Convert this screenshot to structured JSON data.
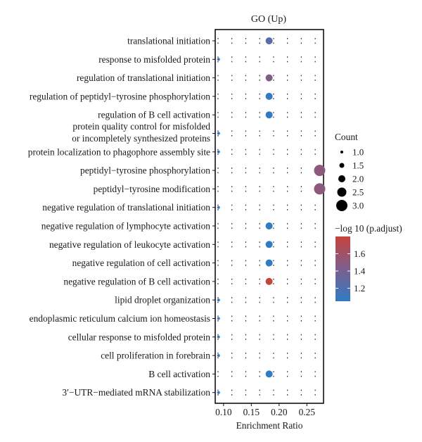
{
  "chart_data": {
    "type": "scatter",
    "title": "GO (Up)",
    "xlabel": "Enrichment Ratio",
    "xlim": [
      0.085,
      0.28
    ],
    "xticks": [
      0.1,
      0.15,
      0.2,
      0.25
    ],
    "xtick_labels": [
      "0.10",
      "0.15",
      "0.20",
      "0.25"
    ],
    "categories": [
      "translational initiation",
      "response to misfolded protein",
      "regulation of translational initiation",
      "regulation of peptidyl−tyrosine phosphorylation",
      "regulation of B cell activation",
      "protein quality control for misfolded\nor incompletely synthesized proteins",
      "protein localization to phagophore assembly site",
      "peptidyl−tyrosine phosphorylation",
      "peptidyl−tyrosine modification",
      "negative regulation of translational initiation",
      "negative regulation of lymphocyte activation",
      "negative regulation of leukocyte activation",
      "negative regulation of cell activation",
      "negative regulation of B cell activation",
      "lipid droplet organization",
      "endoplasmic reticulum calcium ion homeostasis",
      "cellular response to misfolded protein",
      "cell proliferation in forebrain",
      "B cell activation",
      "3′−UTR−mediated mRNA stabilization"
    ],
    "points": [
      {
        "term": "translational initiation",
        "x": 0.182,
        "count": 2,
        "p_adjust_log": 1.25
      },
      {
        "term": "response to misfolded protein",
        "x": 0.091,
        "count": 1,
        "p_adjust_log": 1.05
      },
      {
        "term": "regulation of translational initiation",
        "x": 0.182,
        "count": 2,
        "p_adjust_log": 1.45
      },
      {
        "term": "regulation of peptidyl−tyrosine phosphorylation",
        "x": 0.182,
        "count": 2,
        "p_adjust_log": 1.08
      },
      {
        "term": "regulation of B cell activation",
        "x": 0.182,
        "count": 2,
        "p_adjust_log": 1.05
      },
      {
        "term": "protein quality control for misfolded\nor incompletely synthesized proteins",
        "x": 0.091,
        "count": 1,
        "p_adjust_log": 1.05
      },
      {
        "term": "protein localization to phagophore assembly site",
        "x": 0.091,
        "count": 1,
        "p_adjust_log": 1.05
      },
      {
        "term": "peptidyl−tyrosine phosphorylation",
        "x": 0.273,
        "count": 3,
        "p_adjust_log": 1.5
      },
      {
        "term": "peptidyl−tyrosine modification",
        "x": 0.273,
        "count": 3,
        "p_adjust_log": 1.5
      },
      {
        "term": "negative regulation of translational initiation",
        "x": 0.091,
        "count": 1,
        "p_adjust_log": 1.05
      },
      {
        "term": "negative regulation of lymphocyte activation",
        "x": 0.182,
        "count": 2,
        "p_adjust_log": 1.05
      },
      {
        "term": "negative regulation of leukocyte activation",
        "x": 0.182,
        "count": 2,
        "p_adjust_log": 1.05
      },
      {
        "term": "negative regulation of cell activation",
        "x": 0.182,
        "count": 2,
        "p_adjust_log": 1.05
      },
      {
        "term": "negative regulation of B cell activation",
        "x": 0.182,
        "count": 2,
        "p_adjust_log": 1.78
      },
      {
        "term": "lipid droplet organization",
        "x": 0.091,
        "count": 1,
        "p_adjust_log": 1.05
      },
      {
        "term": "endoplasmic reticulum calcium ion homeostasis",
        "x": 0.091,
        "count": 1,
        "p_adjust_log": 1.05
      },
      {
        "term": "cellular response to misfolded protein",
        "x": 0.091,
        "count": 1,
        "p_adjust_log": 1.05
      },
      {
        "term": "cell proliferation in forebrain",
        "x": 0.091,
        "count": 1,
        "p_adjust_log": 1.05
      },
      {
        "term": "B cell activation",
        "x": 0.182,
        "count": 2,
        "p_adjust_log": 1.05
      },
      {
        "term": "3′−UTR−mediated mRNA stabilization",
        "x": 0.091,
        "count": 1,
        "p_adjust_log": 1.05
      }
    ],
    "size_legend": {
      "title": "Count",
      "values": [
        1.0,
        1.5,
        2.0,
        2.5,
        3.0
      ],
      "labels": [
        "1.0",
        "1.5",
        "2.0",
        "2.5",
        "3.0"
      ]
    },
    "color_legend": {
      "title": "−log 10 (p.adjust)",
      "range": [
        1.05,
        1.8
      ],
      "ticks": [
        1.2,
        1.4,
        1.6
      ],
      "tick_labels": [
        "1.2",
        "1.4",
        "1.6"
      ],
      "low_color": "#2f7bc4",
      "mid_color": "#7d5f8e",
      "high_color": "#c6423b"
    },
    "grid": "dotted"
  }
}
